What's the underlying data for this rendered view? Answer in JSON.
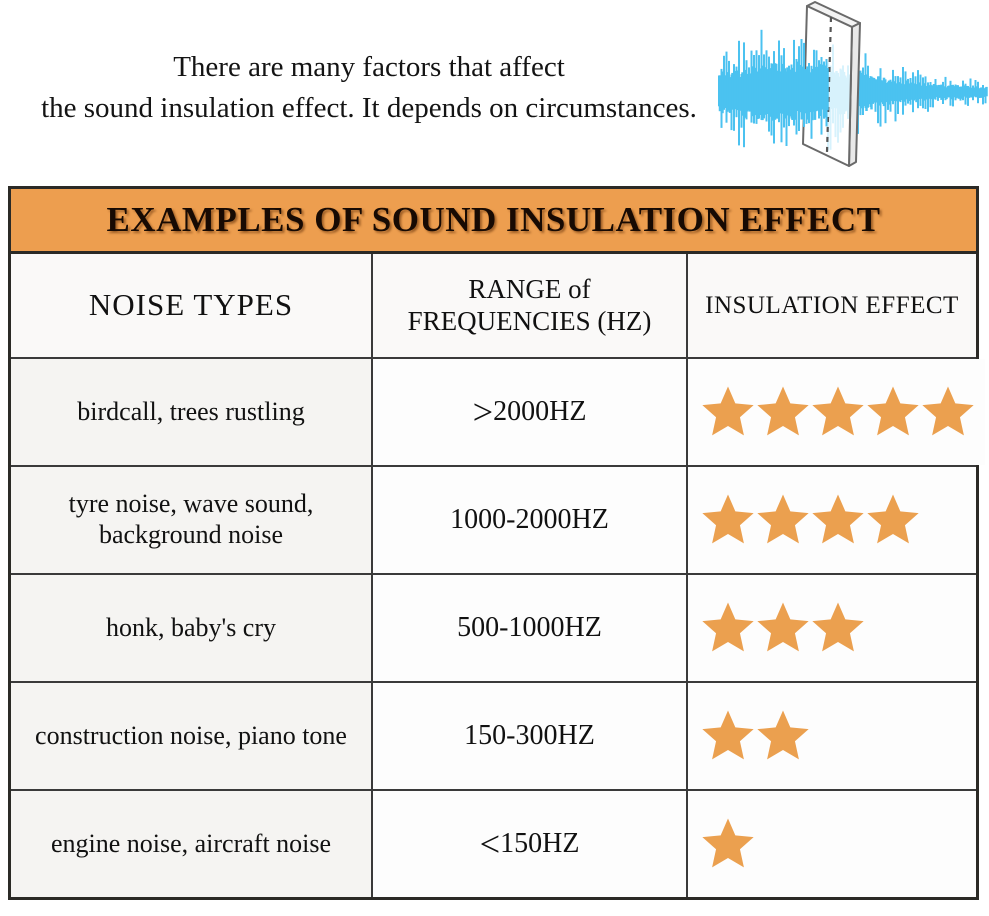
{
  "intro": {
    "line1": "There are many factors that affect",
    "line2": "the sound insulation effect. It depends on circumstances."
  },
  "illustration": {
    "label": "sound wave attenuated by insulation panel",
    "wave_color": "#4BC2F0",
    "panel_outline_color": "#6a6a6a"
  },
  "table": {
    "title": "EXAMPLES OF SOUND INSULATION EFFECT",
    "header": {
      "c1": "NOISE TYPES",
      "c2_line1": "RANGE of",
      "c2_line2": "FREQUENCIES (HZ)",
      "c3": "INSULATION EFFECT"
    },
    "colors": {
      "title_bg": "#ED9E4F",
      "star": "#EBA04F",
      "grid_line": "#3a3a3a",
      "col1_bg": "#f5f4f2"
    }
  },
  "chart_data": {
    "type": "table",
    "title": "EXAMPLES OF SOUND INSULATION EFFECT",
    "columns": [
      "NOISE TYPES",
      "RANGE of FREQUENCIES (HZ)",
      "INSULATION EFFECT"
    ],
    "rows": [
      {
        "noise_type": "birdcall, trees rustling",
        "frequency_range": ">2000HZ",
        "insulation_stars": 5
      },
      {
        "noise_type": "tyre noise, wave sound, background noise",
        "frequency_range": "1000-2000HZ",
        "insulation_stars": 4
      },
      {
        "noise_type": "honk, baby's cry",
        "frequency_range": "500-1000HZ",
        "insulation_stars": 3
      },
      {
        "noise_type": "construction noise, piano tone",
        "frequency_range": "150-300HZ",
        "insulation_stars": 2
      },
      {
        "noise_type": "engine noise, aircraft noise",
        "frequency_range": "<150HZ",
        "insulation_stars": 1
      }
    ],
    "star_scale_max": 5
  }
}
